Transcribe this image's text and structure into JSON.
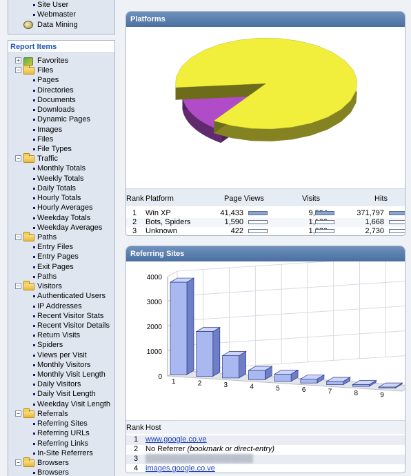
{
  "top_menu": [
    {
      "label": "Site User",
      "icon": "bullet"
    },
    {
      "label": "Webmaster",
      "icon": "bullet"
    },
    {
      "label": "Data Mining",
      "icon": "data-mining-icon"
    }
  ],
  "report_items": {
    "title": "Report Items",
    "tree": [
      {
        "label": "Favorites",
        "kind": "group",
        "icon": "favorites-icon",
        "expander": "+"
      },
      {
        "label": "Files",
        "kind": "group",
        "icon": "folder-icon",
        "expander": "−"
      },
      {
        "label": "Pages",
        "kind": "item"
      },
      {
        "label": "Directories",
        "kind": "item"
      },
      {
        "label": "Documents",
        "kind": "item"
      },
      {
        "label": "Downloads",
        "kind": "item"
      },
      {
        "label": "Dynamic Pages",
        "kind": "item"
      },
      {
        "label": "Images",
        "kind": "item"
      },
      {
        "label": "Files",
        "kind": "item"
      },
      {
        "label": "File Types",
        "kind": "item"
      },
      {
        "label": "Traffic",
        "kind": "group",
        "icon": "folder-icon",
        "expander": "−"
      },
      {
        "label": "Monthly Totals",
        "kind": "item"
      },
      {
        "label": "Weekly Totals",
        "kind": "item"
      },
      {
        "label": "Daily Totals",
        "kind": "item"
      },
      {
        "label": "Hourly Totals",
        "kind": "item"
      },
      {
        "label": "Hourly Averages",
        "kind": "item"
      },
      {
        "label": "Weekday Totals",
        "kind": "item"
      },
      {
        "label": "Weekday Averages",
        "kind": "item"
      },
      {
        "label": "Paths",
        "kind": "group",
        "icon": "folder-icon",
        "expander": "−"
      },
      {
        "label": "Entry Files",
        "kind": "item"
      },
      {
        "label": "Entry Pages",
        "kind": "item"
      },
      {
        "label": "Exit Pages",
        "kind": "item"
      },
      {
        "label": "Paths",
        "kind": "item"
      },
      {
        "label": "Visitors",
        "kind": "group",
        "icon": "folder-icon",
        "expander": "−"
      },
      {
        "label": "Authenticated Users",
        "kind": "item"
      },
      {
        "label": "IP Addresses",
        "kind": "item"
      },
      {
        "label": "Recent Visitor Stats",
        "kind": "item"
      },
      {
        "label": "Recent Visitor Details",
        "kind": "item"
      },
      {
        "label": "Return Visits",
        "kind": "item"
      },
      {
        "label": "Spiders",
        "kind": "item"
      },
      {
        "label": "Views per Visit",
        "kind": "item"
      },
      {
        "label": "Monthly Visitors",
        "kind": "item"
      },
      {
        "label": "Monthly Visit Length",
        "kind": "item"
      },
      {
        "label": "Daily Visitors",
        "kind": "item"
      },
      {
        "label": "Daily Visit Length",
        "kind": "item"
      },
      {
        "label": "Weekday Visit Length",
        "kind": "item"
      },
      {
        "label": "Referrals",
        "kind": "group",
        "icon": "folder-icon",
        "expander": "−"
      },
      {
        "label": "Referring Sites",
        "kind": "item"
      },
      {
        "label": "Referring URLs",
        "kind": "item"
      },
      {
        "label": "Referring Links",
        "kind": "item"
      },
      {
        "label": "In-Site Referrers",
        "kind": "item"
      },
      {
        "label": "Browsers",
        "kind": "group",
        "icon": "folder-icon",
        "expander": "−"
      },
      {
        "label": "Browsers",
        "kind": "item"
      }
    ]
  },
  "platforms": {
    "title": "Platforms",
    "columns": [
      "Rank",
      "Platform",
      "Page Views",
      "Visits",
      "Hits"
    ],
    "rows": [
      {
        "rank": "1",
        "platform": "Win XP",
        "page_views": "41,433",
        "visits": "9,594",
        "hits": "371,797",
        "pv_share": 1.0,
        "visits_share": 1.0,
        "hits_share": 1.0
      },
      {
        "rank": "2",
        "platform": "Bots, Spiders",
        "page_views": "1,590",
        "visits": "1,109",
        "hits": "1,668",
        "pv_share": 0.04,
        "visits_share": 0.12,
        "hits_share": 0.0
      },
      {
        "rank": "3",
        "platform": "Unknown",
        "page_views": "422",
        "visits": "1,020",
        "hits": "2,730",
        "pv_share": 0.01,
        "visits_share": 0.11,
        "hits_share": 0.01
      }
    ],
    "pie_colors": [
      "#f2ef3c",
      "#b04cc8",
      "#2aa12a",
      "#3340d0",
      "#4a63e0",
      "#d05a7a",
      "#8a7ad8",
      "#c49ae0"
    ]
  },
  "referring_sites": {
    "title": "Referring Sites",
    "columns": [
      "Rank",
      "Host"
    ],
    "rows": [
      {
        "rank": "1",
        "host": "www.google.co.ve",
        "style": "link"
      },
      {
        "rank": "2",
        "host": "No Referrer",
        "note": "(bookmark or direct-entry)",
        "style": "plain"
      },
      {
        "rank": "3",
        "host": "",
        "style": "blurred"
      },
      {
        "rank": "4",
        "host": "images.google.co.ve",
        "style": "link"
      }
    ]
  },
  "chart_data": {
    "type": "bar",
    "title": "",
    "xlabel": "",
    "ylabel": "",
    "categories": [
      "1",
      "2",
      "3",
      "4",
      "5",
      "6",
      "7",
      "8",
      "9"
    ],
    "values": [
      3720,
      1800,
      900,
      370,
      290,
      160,
      130,
      70,
      40
    ],
    "ylim": [
      0,
      4000
    ],
    "yticks": [
      "0",
      "1000",
      "2000",
      "3000",
      "4000"
    ],
    "grid": true,
    "bar_color": "#a9b8f0"
  }
}
